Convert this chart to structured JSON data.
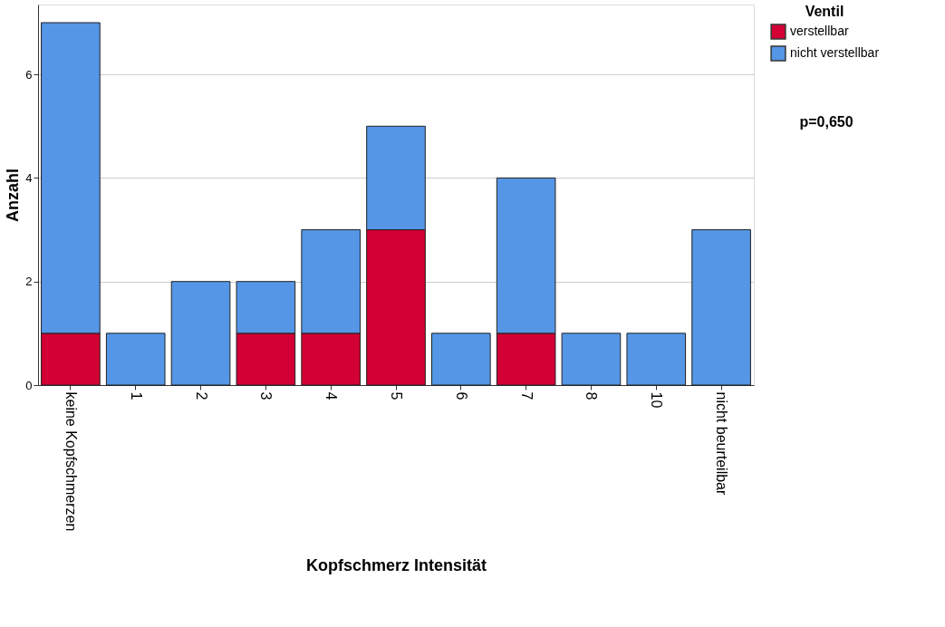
{
  "chart_data": {
    "type": "bar",
    "stacked": true,
    "xlabel": "Kopfschmerz Intensität",
    "ylabel": "Anzahl",
    "legend_title": "Ventil",
    "categories": [
      "keine Kopfschmerzen",
      "1",
      "2",
      "3",
      "4",
      "5",
      "6",
      "7",
      "8",
      "10",
      "nicht beurteilbar"
    ],
    "series": [
      {
        "name": "verstellbar",
        "color": "#d20034",
        "values": [
          1,
          0,
          0,
          1,
          1,
          3,
          0,
          1,
          0,
          0,
          0
        ]
      },
      {
        "name": "nicht verstellbar",
        "color": "#5596e6",
        "values": [
          6,
          1,
          2,
          1,
          2,
          2,
          1,
          3,
          1,
          1,
          3
        ]
      }
    ],
    "ylim": [
      0,
      7.35
    ],
    "yticks": [
      0,
      2,
      4,
      6
    ],
    "grid": "y",
    "legend": "top right",
    "annotations": [
      "p=0,650"
    ]
  }
}
